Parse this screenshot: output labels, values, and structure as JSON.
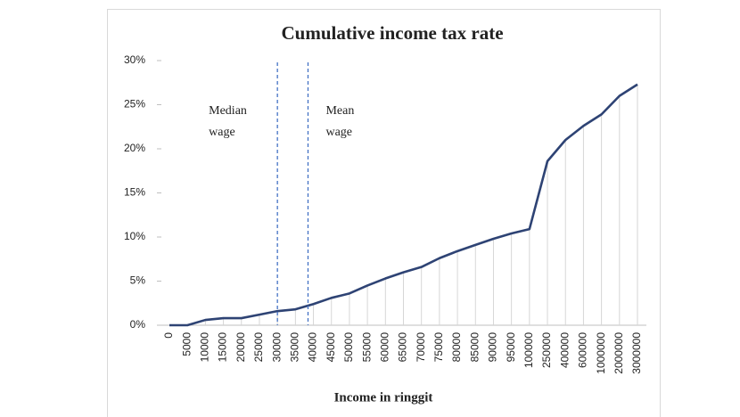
{
  "chart_data": {
    "type": "line",
    "title": "Cumulative income tax rate",
    "x_label": "Income in ringgit",
    "categories": [
      0,
      5000,
      10000,
      15000,
      20000,
      25000,
      30000,
      35000,
      40000,
      45000,
      50000,
      55000,
      60000,
      65000,
      70000,
      75000,
      80000,
      85000,
      90000,
      95000,
      100000,
      250000,
      400000,
      600000,
      1000000,
      2000000,
      3000000
    ],
    "series": [
      {
        "name": "Cumulative income tax rate",
        "color": "#2e4374",
        "values": [
          0,
          0,
          0.6,
          0.8,
          0.8,
          1.2,
          1.6,
          1.8,
          2.4,
          3.1,
          3.6,
          4.5,
          5.3,
          6.0,
          6.6,
          7.6,
          8.4,
          9.1,
          9.8,
          10.4,
          10.9,
          18.6,
          21.0,
          22.6,
          23.9,
          26.0,
          27.3
        ]
      }
    ],
    "ylim": [
      0,
      30
    ],
    "yticks": [
      {
        "value": 0,
        "label": "0%"
      },
      {
        "value": 5,
        "label": "5%"
      },
      {
        "value": 10,
        "label": "10%"
      },
      {
        "value": 15,
        "label": "15%"
      },
      {
        "value": 20,
        "label": "20%"
      },
      {
        "value": 25,
        "label": "25%"
      },
      {
        "value": 30,
        "label": "30%"
      }
    ],
    "annotations": [
      {
        "lines": [
          "Median",
          "wage"
        ],
        "x": 30000,
        "color": "#4472c4"
      },
      {
        "lines": [
          "Mean",
          "wage"
        ],
        "x": 38500,
        "color": "#4472c4"
      }
    ]
  }
}
